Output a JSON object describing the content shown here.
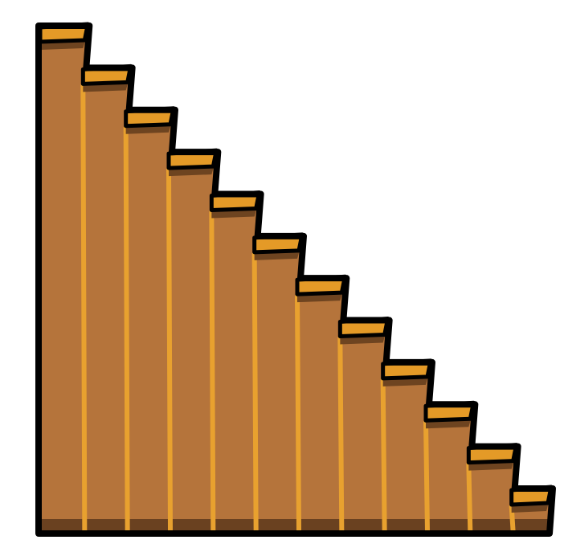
{
  "illustration": {
    "subject": "staircase",
    "step_count": 12,
    "colors": {
      "body": "#B5743B",
      "tread": "#E49A27",
      "tread_shadow": "#6E4420",
      "riser_lines": "#E8A12F",
      "base_shadow": "#6A4120",
      "outline": "#000000",
      "background": "#FFFFFF"
    }
  }
}
